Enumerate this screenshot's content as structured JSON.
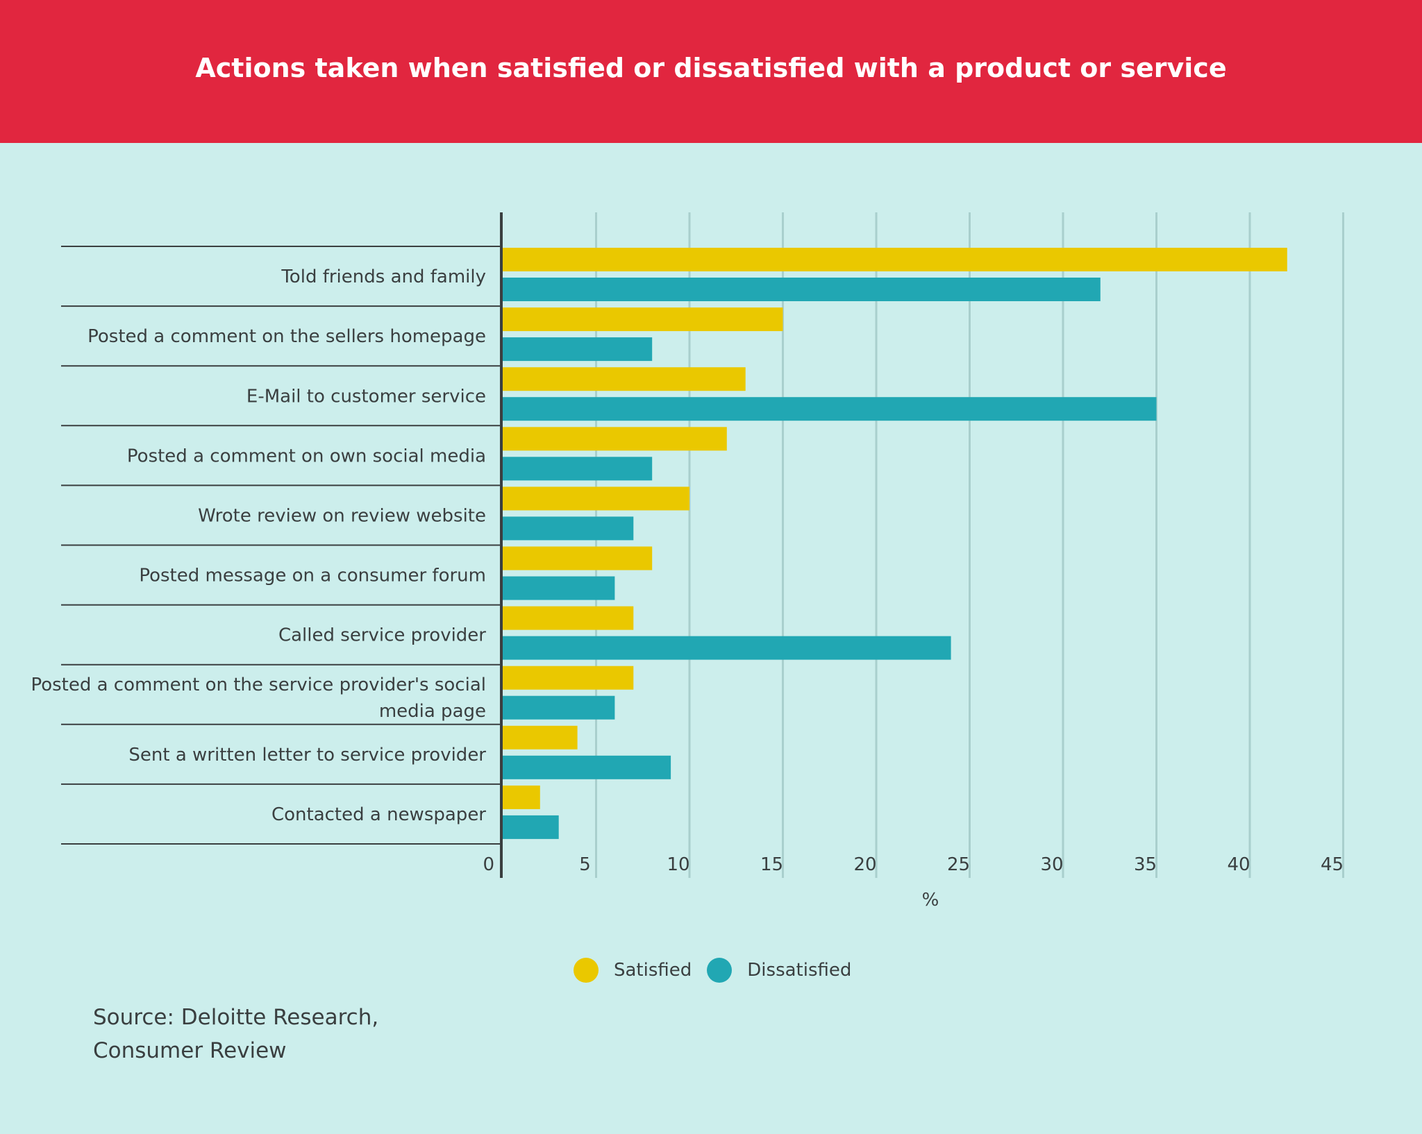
{
  "chart_data": {
    "type": "bar",
    "orientation": "horizontal",
    "title": "Actions taken when satisfied or dissatisfied with a product or service",
    "xlabel": "%",
    "ylabel": "",
    "xlim": [
      0,
      45
    ],
    "x_ticks": [
      "0",
      "5",
      "10",
      "15",
      "20",
      "25",
      "30",
      "35",
      "40",
      "45"
    ],
    "grid": true,
    "legend_position": "bottom-center",
    "categories": [
      "Told friends and family",
      "Posted a comment on the sellers homepage",
      "E-Mail to customer service",
      "Posted a comment on own social media",
      "Wrote review on review website",
      "Posted message on a consumer forum",
      "Called service provider",
      "Posted a comment on the service provider's social media page",
      "Sent a written letter to service provider",
      "Contacted a newspaper"
    ],
    "series": [
      {
        "name": "Satisfied",
        "color": "#eac800",
        "values": [
          42,
          15,
          13,
          12,
          10,
          8,
          7,
          7,
          4,
          2
        ]
      },
      {
        "name": "Dissatisfied",
        "color": "#21a7b3",
        "values": [
          32,
          8,
          35,
          8,
          7,
          6,
          24,
          6,
          9,
          3
        ]
      }
    ]
  },
  "source": {
    "line1": "Source: Deloitte Research,",
    "line2": "Consumer Review"
  }
}
